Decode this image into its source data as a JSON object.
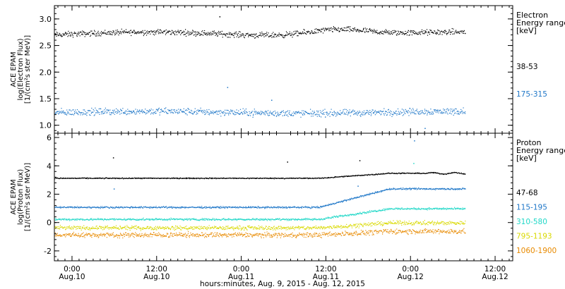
{
  "chart_data": [
    {
      "type": "scatter",
      "ylabel_lines": [
        "ACE EPAM",
        "log(Electron Flux)",
        "[1/(cm²s ster MeV)]"
      ],
      "ylim": [
        0.85,
        3.25
      ],
      "yticks": [
        1.0,
        1.5,
        2.0,
        2.5,
        3.0
      ],
      "ytick_labels": [
        "1.0",
        "1.5",
        "2.0",
        "2.5",
        "3.0"
      ],
      "legend_title": [
        "Electron",
        "Energy range",
        "[keV]"
      ],
      "series": [
        {
          "name": "38-53",
          "color": "#000000",
          "baseline": 2.72,
          "noise": 0.045,
          "wave": 0.04,
          "points": 900
        },
        {
          "name": "175-315",
          "color": "#1f77c8",
          "baseline": 1.25,
          "noise": 0.055,
          "wave": 0.02,
          "points": 900
        }
      ],
      "outliers": [
        {
          "series": 0,
          "t": 41.8,
          "v": 3.05
        },
        {
          "series": 1,
          "t": 44.0,
          "v": 1.72
        },
        {
          "series": 1,
          "t": 56.5,
          "v": 1.48
        },
        {
          "series": 1,
          "t": 100.0,
          "v": 0.95
        }
      ]
    },
    {
      "type": "scatter",
      "ylabel_lines": [
        "ACE EPAM",
        "log(Proton Flux)",
        "[1/(cm²s ster MeV)]"
      ],
      "ylim": [
        -2.7,
        6.3
      ],
      "yticks": [
        -2,
        0,
        2,
        4,
        6
      ],
      "ytick_labels": [
        "-2",
        "0",
        "2",
        "4",
        "6"
      ],
      "legend_title": [
        "Proton",
        "Energy range",
        "[keV]"
      ],
      "series": [
        {
          "name": "47-68",
          "color": "#000000",
          "baseline": 3.15,
          "noise": 0.03,
          "late_rise": 0.35,
          "points": 900
        },
        {
          "name": "115-195",
          "color": "#1f77c8",
          "baseline": 1.1,
          "noise": 0.05,
          "late_rise": 1.3,
          "points": 900
        },
        {
          "name": "310-580",
          "color": "#22d8c8",
          "baseline": 0.25,
          "noise": 0.06,
          "late_rise": 0.75,
          "points": 900
        },
        {
          "name": "795-1193",
          "color": "#d9d900",
          "baseline": -0.35,
          "noise": 0.12,
          "late_rise": 0.35,
          "points": 900
        },
        {
          "name": "1060-1900",
          "color": "#e88a00",
          "baseline": -0.85,
          "noise": 0.15,
          "late_rise": 0.25,
          "points": 900
        }
      ],
      "spikes": [
        {
          "series": 0,
          "t": 11.6,
          "v": 4.6
        },
        {
          "series": 1,
          "t": 11.8,
          "v": 2.4
        },
        {
          "series": 0,
          "t": 61.0,
          "v": 4.3
        },
        {
          "series": 0,
          "t": 81.5,
          "v": 4.4
        },
        {
          "series": 1,
          "t": 81.0,
          "v": 2.6
        },
        {
          "series": 1,
          "t": 97.0,
          "v": 5.8
        },
        {
          "series": 2,
          "t": 96.8,
          "v": 4.2
        }
      ]
    }
  ],
  "xaxis": {
    "range_hours": [
      -5,
      125
    ],
    "data_end_hours": 111.5,
    "ticks": [
      {
        "t": 0,
        "time": "0:00",
        "date": "Aug.10"
      },
      {
        "t": 24,
        "time": "12:00",
        "date": "Aug.10"
      },
      {
        "t": 48,
        "time": "0:00",
        "date": "Aug.11"
      },
      {
        "t": 72,
        "time": "12:00",
        "date": "Aug.11"
      },
      {
        "t": 96,
        "time": "0:00",
        "date": "Aug.12"
      },
      {
        "t": 120,
        "time": "12:00",
        "date": "Aug.12"
      }
    ],
    "label": "hours:minutes, Aug.  9, 2015 - Aug. 12, 2015"
  }
}
